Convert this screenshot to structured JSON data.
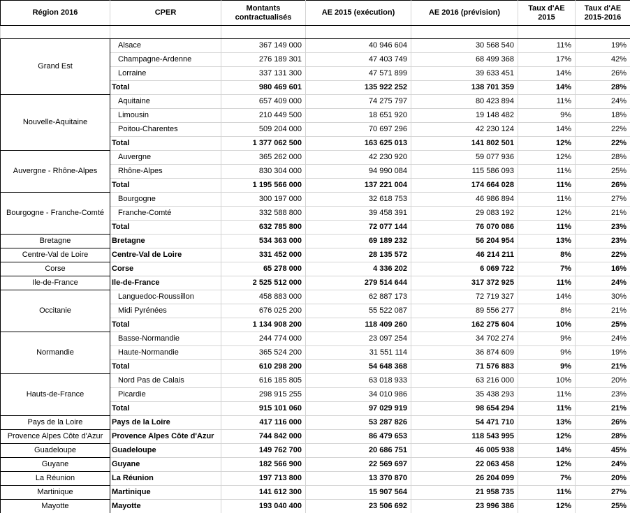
{
  "table": {
    "header": [
      [
        "Région 2016"
      ],
      [
        "CPER"
      ],
      [
        "Montants",
        "contractualisés"
      ],
      [
        "AE 2015 (exécution)"
      ],
      [
        "AE 2016 (prévision)"
      ],
      [
        "Taux d'AE",
        "2015"
      ],
      [
        "Taux d'AE",
        "2015-2016"
      ]
    ],
    "groups": [
      {
        "region": "Grand Est",
        "rows": [
          [
            "Alsace",
            "367 149 000",
            "40 946 604",
            "30 568 540",
            "11%",
            "19%"
          ],
          [
            "Champagne-Ardenne",
            "276 189 301",
            "47 403 749",
            "68 499 368",
            "17%",
            "42%"
          ],
          [
            "Lorraine",
            "337 131 300",
            "47 571 899",
            "39 633 451",
            "14%",
            "26%"
          ],
          [
            "Total",
            "980 469 601",
            "135 922 252",
            "138 701 359",
            "14%",
            "28%"
          ]
        ]
      },
      {
        "region": "Nouvelle-Aquitaine",
        "rows": [
          [
            "Aquitaine",
            "657 409 000",
            "74 275 797",
            "80 423 894",
            "11%",
            "24%"
          ],
          [
            "Limousin",
            "210 449 500",
            "18 651 920",
            "19 148 482",
            "9%",
            "18%"
          ],
          [
            "Poitou-Charentes",
            "509 204 000",
            "70 697 296",
            "42 230 124",
            "14%",
            "22%"
          ],
          [
            "Total",
            "1 377 062 500",
            "163 625 013",
            "141 802 501",
            "12%",
            "22%"
          ]
        ]
      },
      {
        "region": "Auvergne - Rhône-Alpes",
        "rows": [
          [
            "Auvergne",
            "365 262 000",
            "42 230 920",
            "59 077 936",
            "12%",
            "28%"
          ],
          [
            "Rhône-Alpes",
            "830 304 000",
            "94 990 084",
            "115 586 093",
            "11%",
            "25%"
          ],
          [
            "Total",
            "1 195 566 000",
            "137 221 004",
            "174 664 028",
            "11%",
            "26%"
          ]
        ]
      },
      {
        "region": "Bourgogne - Franche-Comté",
        "rows": [
          [
            "Bourgogne",
            "300 197 000",
            "32 618 753",
            "46 986 894",
            "11%",
            "27%"
          ],
          [
            "Franche-Comté",
            "332 588 800",
            "39 458 391",
            "29 083 192",
            "12%",
            "21%"
          ],
          [
            "Total",
            "632 785 800",
            "72 077 144",
            "76 070 086",
            "11%",
            "23%"
          ]
        ]
      },
      {
        "region": "Bretagne",
        "rows": [
          [
            "Bretagne",
            "534 363 000",
            "69 189 232",
            "56 204 954",
            "13%",
            "23%"
          ]
        ]
      },
      {
        "region": "Centre-Val de Loire",
        "rows": [
          [
            "Centre-Val de Loire",
            "331 452 000",
            "28 135 572",
            "46 214 211",
            "8%",
            "22%"
          ]
        ]
      },
      {
        "region": "Corse",
        "rows": [
          [
            "Corse",
            "65 278 000",
            "4 336 202",
            "6 069 722",
            "7%",
            "16%"
          ]
        ]
      },
      {
        "region": "Ile-de-France",
        "rows": [
          [
            "Ile-de-France",
            "2 525 512 000",
            "279 514 644",
            "317 372 925",
            "11%",
            "24%"
          ]
        ]
      },
      {
        "region": "Occitanie",
        "rows": [
          [
            "Languedoc-Roussillon",
            "458 883 000",
            "62 887 173",
            "72 719 327",
            "14%",
            "30%"
          ],
          [
            "Midi Pyrénées",
            "676 025 200",
            "55 522 087",
            "89 556 277",
            "8%",
            "21%"
          ],
          [
            "Total",
            "1 134 908 200",
            "118 409 260",
            "162 275 604",
            "10%",
            "25%"
          ]
        ]
      },
      {
        "region": "Normandie",
        "rows": [
          [
            "Basse-Normandie",
            "244 774 000",
            "23 097 254",
            "34 702 274",
            "9%",
            "24%"
          ],
          [
            "Haute-Normandie",
            "365 524 200",
            "31 551 114",
            "36 874 609",
            "9%",
            "19%"
          ],
          [
            "Total",
            "610 298 200",
            "54 648 368",
            "71 576 883",
            "9%",
            "21%"
          ]
        ]
      },
      {
        "region": "Hauts-de-France",
        "rows": [
          [
            "Nord Pas de Calais",
            "616 185 805",
            "63 018 933",
            "63 216 000",
            "10%",
            "20%"
          ],
          [
            "Picardie",
            "298 915 255",
            "34 010 986",
            "35 438 293",
            "11%",
            "23%"
          ],
          [
            "Total",
            "915 101 060",
            "97 029 919",
            "98 654 294",
            "11%",
            "21%"
          ]
        ]
      },
      {
        "region": "Pays de la Loire",
        "rows": [
          [
            "Pays de la Loire",
            "417 116 000",
            "53 287 826",
            "54 471 710",
            "13%",
            "26%"
          ]
        ]
      },
      {
        "region": "Provence Alpes Côte d'Azur",
        "rows": [
          [
            "Provence Alpes Côte d'Azur",
            "744 842 000",
            "86 479 653",
            "118 543 995",
            "12%",
            "28%"
          ]
        ]
      },
      {
        "region": "Guadeloupe",
        "rows": [
          [
            "Guadeloupe",
            "149 762 700",
            "20 686 751",
            "46 005 938",
            "14%",
            "45%"
          ]
        ]
      },
      {
        "region": "Guyane",
        "rows": [
          [
            "Guyane",
            "182 566 900",
            "22 569 697",
            "22 063 458",
            "12%",
            "24%"
          ]
        ]
      },
      {
        "region": "La Réunion",
        "rows": [
          [
            "La Réunion",
            "197 713 800",
            "13 370 870",
            "26 204 099",
            "7%",
            "20%"
          ]
        ]
      },
      {
        "region": "Martinique",
        "rows": [
          [
            "Martinique",
            "141 612 300",
            "15 907 564",
            "21 958 735",
            "11%",
            "27%"
          ]
        ]
      },
      {
        "region": "Mayotte",
        "rows": [
          [
            "Mayotte",
            "193 040 400",
            "23 506 692",
            "23 996 386",
            "12%",
            "25%"
          ]
        ]
      }
    ]
  }
}
